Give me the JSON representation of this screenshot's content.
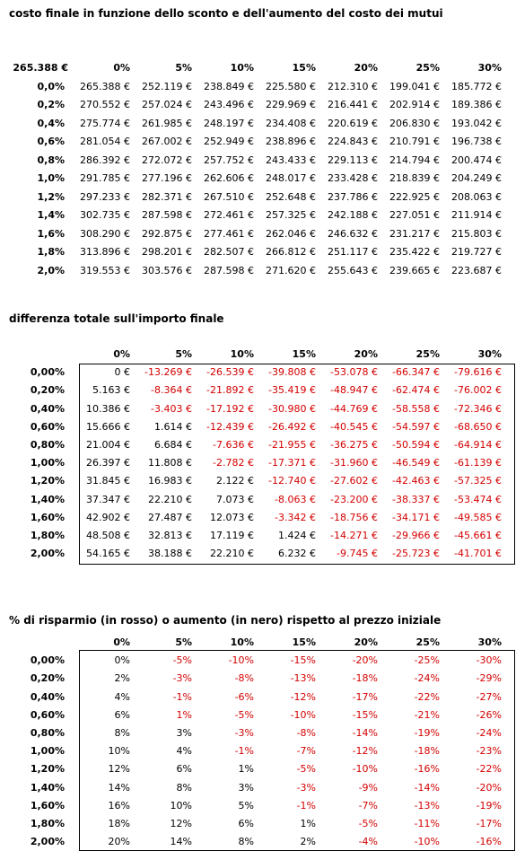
{
  "colors": {
    "negative": "#d40000",
    "positive": "#000000"
  },
  "section1": {
    "title": "costo finale in funzione dello sconto e dell'aumento del costo dei mutui",
    "corner": "265.388 €",
    "columns": [
      "0%",
      "5%",
      "10%",
      "15%",
      "20%",
      "25%",
      "30%"
    ],
    "rows": [
      {
        "label": "0,0%",
        "cells": [
          "265.388 €",
          "252.119 €",
          "238.849 €",
          "225.580 €",
          "212.310 €",
          "199.041 €",
          "185.772 €"
        ]
      },
      {
        "label": "0,2%",
        "cells": [
          "270.552 €",
          "257.024 €",
          "243.496 €",
          "229.969 €",
          "216.441 €",
          "202.914 €",
          "189.386 €"
        ]
      },
      {
        "label": "0,4%",
        "cells": [
          "275.774 €",
          "261.985 €",
          "248.197 €",
          "234.408 €",
          "220.619 €",
          "206.830 €",
          "193.042 €"
        ]
      },
      {
        "label": "0,6%",
        "cells": [
          "281.054 €",
          "267.002 €",
          "252.949 €",
          "238.896 €",
          "224.843 €",
          "210.791 €",
          "196.738 €"
        ]
      },
      {
        "label": "0,8%",
        "cells": [
          "286.392 €",
          "272.072 €",
          "257.752 €",
          "243.433 €",
          "229.113 €",
          "214.794 €",
          "200.474 €"
        ]
      },
      {
        "label": "1,0%",
        "cells": [
          "291.785 €",
          "277.196 €",
          "262.606 €",
          "248.017 €",
          "233.428 €",
          "218.839 €",
          "204.249 €"
        ]
      },
      {
        "label": "1,2%",
        "cells": [
          "297.233 €",
          "282.371 €",
          "267.510 €",
          "252.648 €",
          "237.786 €",
          "222.925 €",
          "208.063 €"
        ]
      },
      {
        "label": "1,4%",
        "cells": [
          "302.735 €",
          "287.598 €",
          "272.461 €",
          "257.325 €",
          "242.188 €",
          "227.051 €",
          "211.914 €"
        ]
      },
      {
        "label": "1,6%",
        "cells": [
          "308.290 €",
          "292.875 €",
          "277.461 €",
          "262.046 €",
          "246.632 €",
          "231.217 €",
          "215.803 €"
        ]
      },
      {
        "label": "1,8%",
        "cells": [
          "313.896 €",
          "298.201 €",
          "282.507 €",
          "266.812 €",
          "251.117 €",
          "235.422 €",
          "219.727 €"
        ]
      },
      {
        "label": "2,0%",
        "cells": [
          "319.553 €",
          "303.576 €",
          "287.598 €",
          "271.620 €",
          "255.643 €",
          "239.665 €",
          "223.687 €"
        ]
      }
    ]
  },
  "section2": {
    "title": "differenza totale sull'importo finale",
    "columns": [
      "0%",
      "5%",
      "10%",
      "15%",
      "20%",
      "25%",
      "30%"
    ],
    "rows": [
      {
        "label": "0,00%",
        "cells": [
          "0 €",
          "-13.269 €",
          "-26.539 €",
          "-39.808 €",
          "-53.078 €",
          "-66.347 €",
          "-79.616 €"
        ]
      },
      {
        "label": "0,20%",
        "cells": [
          "5.163 €",
          "-8.364 €",
          "-21.892 €",
          "-35.419 €",
          "-48.947 €",
          "-62.474 €",
          "-76.002 €"
        ]
      },
      {
        "label": "0,40%",
        "cells": [
          "10.386 €",
          "-3.403 €",
          "-17.192 €",
          "-30.980 €",
          "-44.769 €",
          "-58.558 €",
          "-72.346 €"
        ]
      },
      {
        "label": "0,60%",
        "cells": [
          "15.666 €",
          "1.614 €",
          "-12.439 €",
          "-26.492 €",
          "-40.545 €",
          "-54.597 €",
          "-68.650 €"
        ]
      },
      {
        "label": "0,80%",
        "cells": [
          "21.004 €",
          "6.684 €",
          "-7.636 €",
          "-21.955 €",
          "-36.275 €",
          "-50.594 €",
          "-64.914 €"
        ]
      },
      {
        "label": "1,00%",
        "cells": [
          "26.397 €",
          "11.808 €",
          "-2.782 €",
          "-17.371 €",
          "-31.960 €",
          "-46.549 €",
          "-61.139 €"
        ]
      },
      {
        "label": "1,20%",
        "cells": [
          "31.845 €",
          "16.983 €",
          "2.122 €",
          "-12.740 €",
          "-27.602 €",
          "-42.463 €",
          "-57.325 €"
        ]
      },
      {
        "label": "1,40%",
        "cells": [
          "37.347 €",
          "22.210 €",
          "7.073 €",
          "-8.063 €",
          "-23.200 €",
          "-38.337 €",
          "-53.474 €"
        ]
      },
      {
        "label": "1,60%",
        "cells": [
          "42.902 €",
          "27.487 €",
          "12.073 €",
          "-3.342 €",
          "-18.756 €",
          "-34.171 €",
          "-49.585 €"
        ]
      },
      {
        "label": "1,80%",
        "cells": [
          "48.508 €",
          "32.813 €",
          "17.119 €",
          "1.424 €",
          "-14.271 €",
          "-29.966 €",
          "-45.661 €"
        ]
      },
      {
        "label": "2,00%",
        "cells": [
          "54.165 €",
          "38.188 €",
          "22.210 €",
          "6.232 €",
          "-9.745 €",
          "-25.723 €",
          "-41.701 €"
        ]
      }
    ]
  },
  "section3": {
    "title": "% di risparmio (in rosso) o aumento (in nero) rispetto al prezzo iniziale",
    "columns": [
      "0%",
      "5%",
      "10%",
      "15%",
      "20%",
      "25%",
      "30%"
    ],
    "rows": [
      {
        "label": "0,00%",
        "cells": [
          "0%",
          "-5%",
          "-10%",
          "-15%",
          "-20%",
          "-25%",
          "-30%"
        ]
      },
      {
        "label": "0,20%",
        "cells": [
          "2%",
          "-3%",
          "-8%",
          "-13%",
          "-18%",
          "-24%",
          "-29%"
        ]
      },
      {
        "label": "0,40%",
        "cells": [
          "4%",
          "-1%",
          "-6%",
          "-12%",
          "-17%",
          "-22%",
          "-27%"
        ]
      },
      {
        "label": "0,60%",
        "cells": [
          "6%",
          "1%",
          "-5%",
          "-10%",
          "-15%",
          "-21%",
          "-26%"
        ]
      },
      {
        "label": "0,80%",
        "cells": [
          "8%",
          "3%",
          "-3%",
          "-8%",
          "-14%",
          "-19%",
          "-24%"
        ]
      },
      {
        "label": "1,00%",
        "cells": [
          "10%",
          "4%",
          "-1%",
          "-7%",
          "-12%",
          "-18%",
          "-23%"
        ]
      },
      {
        "label": "1,20%",
        "cells": [
          "12%",
          "6%",
          "1%",
          "-5%",
          "-10%",
          "-16%",
          "-22%"
        ]
      },
      {
        "label": "1,40%",
        "cells": [
          "14%",
          "8%",
          "3%",
          "-3%",
          "-9%",
          "-14%",
          "-20%"
        ]
      },
      {
        "label": "1,60%",
        "cells": [
          "16%",
          "10%",
          "5%",
          "-1%",
          "-7%",
          "-13%",
          "-19%"
        ]
      },
      {
        "label": "1,80%",
        "cells": [
          "18%",
          "12%",
          "6%",
          "1%",
          "-5%",
          "-11%",
          "-17%"
        ]
      },
      {
        "label": "2,00%",
        "cells": [
          "20%",
          "14%",
          "8%",
          "2%",
          "-4%",
          "-10%",
          "-16%"
        ]
      }
    ],
    "red_cells": [
      [
        1,
        2,
        3,
        4,
        5,
        6
      ],
      [
        1,
        2,
        3,
        4,
        5,
        6
      ],
      [
        1,
        2,
        3,
        4,
        5,
        6
      ],
      [
        1,
        2,
        3,
        4,
        5,
        6
      ],
      [
        2,
        3,
        4,
        5,
        6
      ],
      [
        2,
        3,
        4,
        5,
        6
      ],
      [
        3,
        4,
        5,
        6
      ],
      [
        3,
        4,
        5,
        6
      ],
      [
        3,
        4,
        5,
        6
      ],
      [
        4,
        5,
        6
      ],
      [
        4,
        5,
        6
      ]
    ]
  }
}
